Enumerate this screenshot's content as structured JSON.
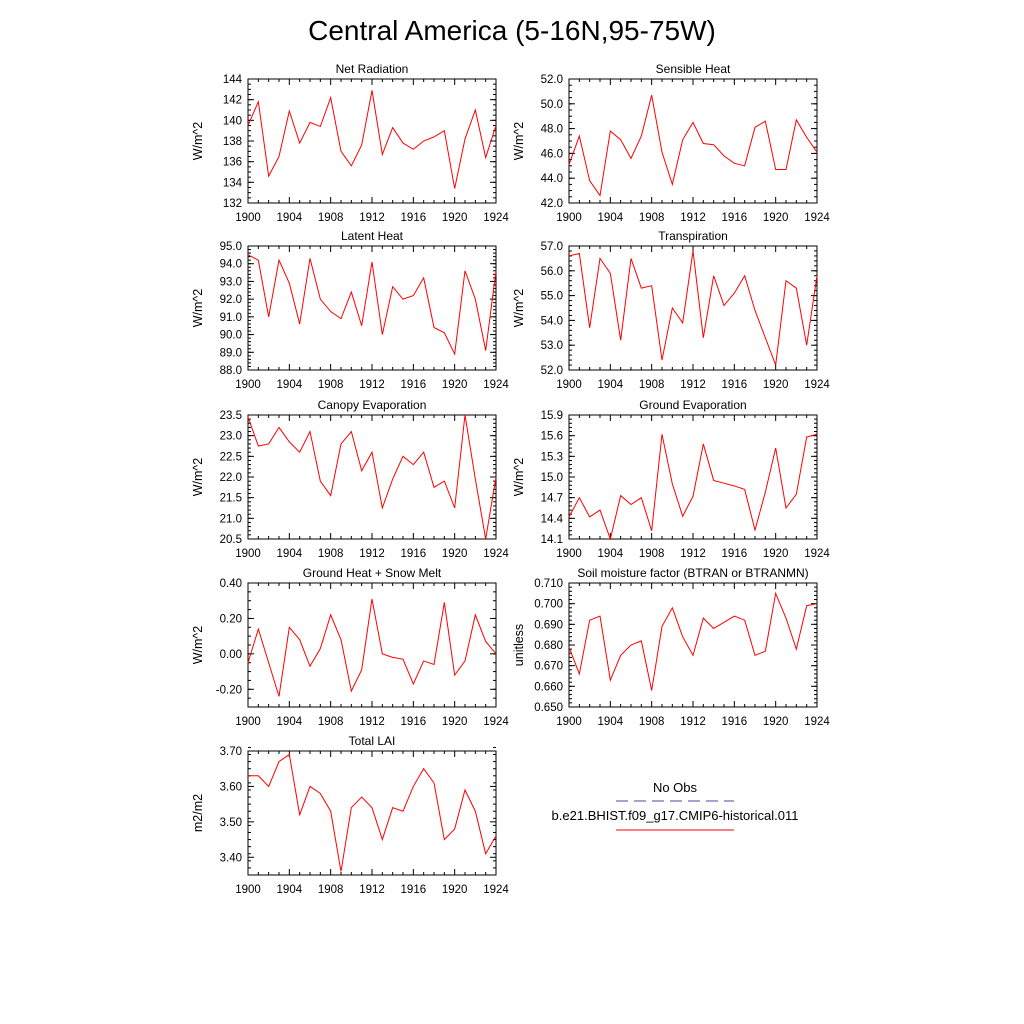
{
  "figure": {
    "title": "Central America (5-16N,95-75W)"
  },
  "legend": {
    "obs_label": "No Obs",
    "model_label": "b.e21.BHIST.f09_g17.CMIP6-historical.011",
    "obs_color": "#4a4aa0",
    "model_color": "#ff0000"
  },
  "chart_data": [
    {
      "type": "line",
      "title": "Net Radiation",
      "ylabel": "W/m^2",
      "xlim": [
        1900,
        1924
      ],
      "ylim": [
        132,
        144
      ],
      "xticks": [
        "1900",
        "1904",
        "1908",
        "1912",
        "1916",
        "1920",
        "1924"
      ],
      "yticks": [
        "132",
        "134",
        "136",
        "138",
        "140",
        "142",
        "144"
      ],
      "x": [
        1900,
        1901,
        1902,
        1903,
        1904,
        1905,
        1906,
        1907,
        1908,
        1909,
        1910,
        1911,
        1912,
        1913,
        1914,
        1915,
        1916,
        1917,
        1918,
        1919,
        1920,
        1921,
        1922,
        1923,
        1924
      ],
      "series": [
        {
          "values": [
            139.5,
            141.8,
            134.6,
            136.5,
            140.9,
            137.8,
            139.8,
            139.4,
            142.2,
            137.0,
            135.6,
            137.6,
            142.9,
            136.7,
            139.3,
            137.8,
            137.2,
            138.0,
            138.4,
            139.0,
            133.4,
            138.2,
            141.0,
            136.4,
            139.5
          ]
        }
      ]
    },
    {
      "type": "line",
      "title": "Sensible Heat",
      "ylabel": "W/m^2",
      "xlim": [
        1900,
        1924
      ],
      "ylim": [
        42,
        52
      ],
      "xticks": [
        "1900",
        "1904",
        "1908",
        "1912",
        "1916",
        "1920",
        "1924"
      ],
      "yticks": [
        "42.0",
        "44.0",
        "46.0",
        "48.0",
        "50.0",
        "52.0"
      ],
      "x": [
        1900,
        1901,
        1902,
        1903,
        1904,
        1905,
        1906,
        1907,
        1908,
        1909,
        1910,
        1911,
        1912,
        1913,
        1914,
        1915,
        1916,
        1917,
        1918,
        1919,
        1920,
        1921,
        1922,
        1923,
        1924
      ],
      "series": [
        {
          "values": [
            45.1,
            47.4,
            43.8,
            42.6,
            47.8,
            47.1,
            45.6,
            47.4,
            50.7,
            46.1,
            43.5,
            47.1,
            48.5,
            46.8,
            46.7,
            45.8,
            45.2,
            45.0,
            48.1,
            48.6,
            44.7,
            44.7,
            48.7,
            47.3,
            46.1
          ]
        }
      ]
    },
    {
      "type": "line",
      "title": "Latent Heat",
      "ylabel": "W/m^2",
      "xlim": [
        1900,
        1924
      ],
      "ylim": [
        88,
        95
      ],
      "xticks": [
        "1900",
        "1904",
        "1908",
        "1912",
        "1916",
        "1920",
        "1924"
      ],
      "yticks": [
        "88.0",
        "89.0",
        "90.0",
        "91.0",
        "92.0",
        "93.0",
        "94.0",
        "95.0"
      ],
      "x": [
        1900,
        1901,
        1902,
        1903,
        1904,
        1905,
        1906,
        1907,
        1908,
        1909,
        1910,
        1911,
        1912,
        1913,
        1914,
        1915,
        1916,
        1917,
        1918,
        1919,
        1920,
        1921,
        1922,
        1923,
        1924
      ],
      "series": [
        {
          "values": [
            94.5,
            94.2,
            91.0,
            94.2,
            92.9,
            90.6,
            94.3,
            92.0,
            91.3,
            90.9,
            92.4,
            90.5,
            94.1,
            90.0,
            92.7,
            92.0,
            92.2,
            93.2,
            90.4,
            90.1,
            88.9,
            93.6,
            92.0,
            89.1,
            93.6
          ]
        }
      ]
    },
    {
      "type": "line",
      "title": "Transpiration",
      "ylabel": "W/m^2",
      "xlim": [
        1900,
        1924
      ],
      "ylim": [
        52,
        57
      ],
      "xticks": [
        "1900",
        "1904",
        "1908",
        "1912",
        "1916",
        "1920",
        "1924"
      ],
      "yticks": [
        "52.0",
        "53.0",
        "54.0",
        "55.0",
        "56.0",
        "57.0"
      ],
      "x": [
        1900,
        1901,
        1902,
        1903,
        1904,
        1905,
        1906,
        1907,
        1908,
        1909,
        1910,
        1911,
        1912,
        1913,
        1914,
        1915,
        1916,
        1917,
        1918,
        1919,
        1920,
        1921,
        1922,
        1923,
        1924
      ],
      "series": [
        {
          "values": [
            56.6,
            56.7,
            53.7,
            56.5,
            55.9,
            53.2,
            56.5,
            55.3,
            55.4,
            52.4,
            54.5,
            53.9,
            56.8,
            53.3,
            55.8,
            54.6,
            55.1,
            55.8,
            54.4,
            53.3,
            52.2,
            55.6,
            55.3,
            53.0,
            55.8
          ]
        }
      ]
    },
    {
      "type": "line",
      "title": "Canopy Evaporation",
      "ylabel": "W/m^2",
      "xlim": [
        1900,
        1924
      ],
      "ylim": [
        20.5,
        23.5
      ],
      "xticks": [
        "1900",
        "1904",
        "1908",
        "1912",
        "1916",
        "1920",
        "1924"
      ],
      "yticks": [
        "20.5",
        "21.0",
        "21.5",
        "22.0",
        "22.5",
        "23.0",
        "23.5"
      ],
      "x": [
        1900,
        1901,
        1902,
        1903,
        1904,
        1905,
        1906,
        1907,
        1908,
        1909,
        1910,
        1911,
        1912,
        1913,
        1914,
        1915,
        1916,
        1917,
        1918,
        1919,
        1920,
        1921,
        1922,
        1923,
        1924
      ],
      "series": [
        {
          "values": [
            23.45,
            22.75,
            22.8,
            23.2,
            22.85,
            22.6,
            23.1,
            21.9,
            21.55,
            22.8,
            23.1,
            22.15,
            22.6,
            21.25,
            21.95,
            22.5,
            22.3,
            22.6,
            21.75,
            21.9,
            21.25,
            23.5,
            21.95,
            20.5,
            22.0
          ]
        }
      ]
    },
    {
      "type": "line",
      "title": "Ground Evaporation",
      "ylabel": "W/m^2",
      "xlim": [
        1900,
        1924
      ],
      "ylim": [
        14.1,
        15.9
      ],
      "xticks": [
        "1900",
        "1904",
        "1908",
        "1912",
        "1916",
        "1920",
        "1924"
      ],
      "yticks": [
        "14.1",
        "14.4",
        "14.7",
        "15.0",
        "15.3",
        "15.6",
        "15.9"
      ],
      "x": [
        1900,
        1901,
        1902,
        1903,
        1904,
        1905,
        1906,
        1907,
        1908,
        1909,
        1910,
        1911,
        1912,
        1913,
        1914,
        1915,
        1916,
        1917,
        1918,
        1919,
        1920,
        1921,
        1922,
        1923,
        1924
      ],
      "series": [
        {
          "values": [
            14.42,
            14.7,
            14.42,
            14.52,
            14.1,
            14.73,
            14.6,
            14.7,
            14.22,
            15.62,
            14.9,
            14.43,
            14.72,
            15.48,
            14.95,
            14.91,
            14.87,
            14.82,
            14.23,
            14.78,
            15.42,
            14.55,
            14.75,
            15.58,
            15.62
          ]
        }
      ]
    },
    {
      "type": "line",
      "title": "Ground Heat + Snow Melt",
      "ylabel": "W/m^2",
      "xlim": [
        1900,
        1924
      ],
      "ylim": [
        -0.3,
        0.4
      ],
      "xticks": [
        "1900",
        "1904",
        "1908",
        "1912",
        "1916",
        "1920",
        "1924"
      ],
      "yticks": [
        "-0.20",
        "0.00",
        "0.20",
        "0.40"
      ],
      "x": [
        1900,
        1901,
        1902,
        1903,
        1904,
        1905,
        1906,
        1907,
        1908,
        1909,
        1910,
        1911,
        1912,
        1913,
        1914,
        1915,
        1916,
        1917,
        1918,
        1919,
        1920,
        1921,
        1922,
        1923,
        1924
      ],
      "series": [
        {
          "values": [
            -0.05,
            0.14,
            -0.05,
            -0.24,
            0.15,
            0.08,
            -0.07,
            0.03,
            0.22,
            0.08,
            -0.21,
            -0.09,
            0.31,
            0.0,
            -0.02,
            -0.03,
            -0.17,
            -0.04,
            -0.06,
            0.29,
            -0.12,
            -0.04,
            0.22,
            0.07,
            0.0
          ]
        }
      ]
    },
    {
      "type": "line",
      "title": "Soil moisture factor (BTRAN or BTRANMN)",
      "ylabel": "unitless",
      "xlim": [
        1900,
        1924
      ],
      "ylim": [
        0.65,
        0.71
      ],
      "xticks": [
        "1900",
        "1904",
        "1908",
        "1912",
        "1916",
        "1920",
        "1924"
      ],
      "yticks": [
        "0.650",
        "0.660",
        "0.670",
        "0.680",
        "0.690",
        "0.700",
        "0.710"
      ],
      "x": [
        1900,
        1901,
        1902,
        1903,
        1904,
        1905,
        1906,
        1907,
        1908,
        1909,
        1910,
        1911,
        1912,
        1913,
        1914,
        1915,
        1916,
        1917,
        1918,
        1919,
        1920,
        1921,
        1922,
        1923,
        1924
      ],
      "series": [
        {
          "values": [
            0.679,
            0.666,
            0.692,
            0.694,
            0.663,
            0.675,
            0.68,
            0.682,
            0.658,
            0.689,
            0.698,
            0.684,
            0.675,
            0.693,
            0.688,
            0.691,
            0.694,
            0.692,
            0.675,
            0.677,
            0.705,
            0.693,
            0.678,
            0.699,
            0.7
          ]
        }
      ]
    },
    {
      "type": "line",
      "title": "Total LAI",
      "ylabel": "m2/m2",
      "xlim": [
        1900,
        1924
      ],
      "ylim": [
        3.35,
        3.7
      ],
      "xticks": [
        "1900",
        "1904",
        "1908",
        "1912",
        "1916",
        "1920",
        "1924"
      ],
      "yticks": [
        "3.40",
        "3.50",
        "3.60",
        "3.70"
      ],
      "x": [
        1900,
        1901,
        1902,
        1903,
        1904,
        1905,
        1906,
        1907,
        1908,
        1909,
        1910,
        1911,
        1912,
        1913,
        1914,
        1915,
        1916,
        1917,
        1918,
        1919,
        1920,
        1921,
        1922,
        1923,
        1924
      ],
      "series": [
        {
          "values": [
            3.63,
            3.63,
            3.6,
            3.67,
            3.69,
            3.52,
            3.6,
            3.58,
            3.53,
            3.36,
            3.54,
            3.57,
            3.54,
            3.45,
            3.54,
            3.53,
            3.6,
            3.65,
            3.61,
            3.45,
            3.48,
            3.59,
            3.53,
            3.41,
            3.46
          ]
        }
      ]
    }
  ]
}
